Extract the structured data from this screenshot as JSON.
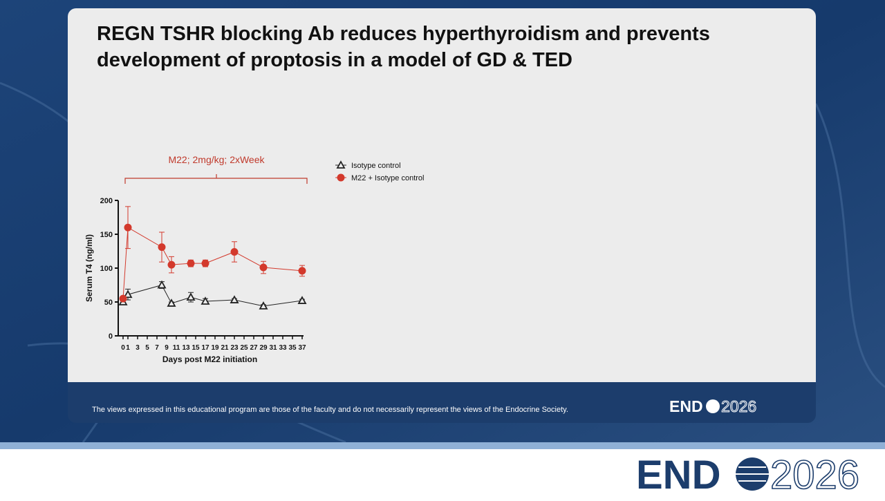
{
  "slide": {
    "title_lines": [
      "REGN TSHR blocking Ab reduces hyperthyroidism and prevents",
      "development of proptosis in a model of GD & TED"
    ],
    "disclaimer": "The views expressed in this educational program are those of the faculty and do not necessarily represent the views of the Endocrine Society.",
    "logo": {
      "left": "END",
      "right": "2026"
    }
  },
  "chart_data": {
    "type": "line",
    "annotation": "M22; 2mg/kg; 2xWeek",
    "x_label": "Days post M22 initiation",
    "y_label": "Serum T4 (ng/ml)",
    "x": [
      0,
      1,
      8,
      10,
      14,
      17,
      23,
      29,
      37
    ],
    "series": [
      {
        "name": "Isotype control",
        "color": "#222222",
        "marker": "triangle",
        "values": [
          50,
          61,
          75,
          48,
          57,
          51,
          53,
          44,
          52
        ],
        "errors": [
          2,
          8,
          5,
          2,
          7,
          4,
          2,
          2,
          2
        ]
      },
      {
        "name": "M22 + Isotype control",
        "color": "#d3392c",
        "marker": "circle",
        "values": [
          55,
          160,
          131,
          105,
          107,
          107,
          124,
          101,
          96
        ],
        "errors": [
          3,
          31,
          22,
          12,
          5,
          5,
          15,
          9,
          8
        ]
      }
    ],
    "xlim": [
      -1,
      38
    ],
    "xticks": [
      0,
      1,
      3,
      5,
      7,
      9,
      11,
      13,
      15,
      17,
      19,
      21,
      23,
      25,
      27,
      29,
      31,
      33,
      35,
      37
    ],
    "ylim": [
      0,
      200
    ],
    "yticks": [
      0,
      50,
      100,
      150,
      200
    ],
    "legend": "right"
  }
}
